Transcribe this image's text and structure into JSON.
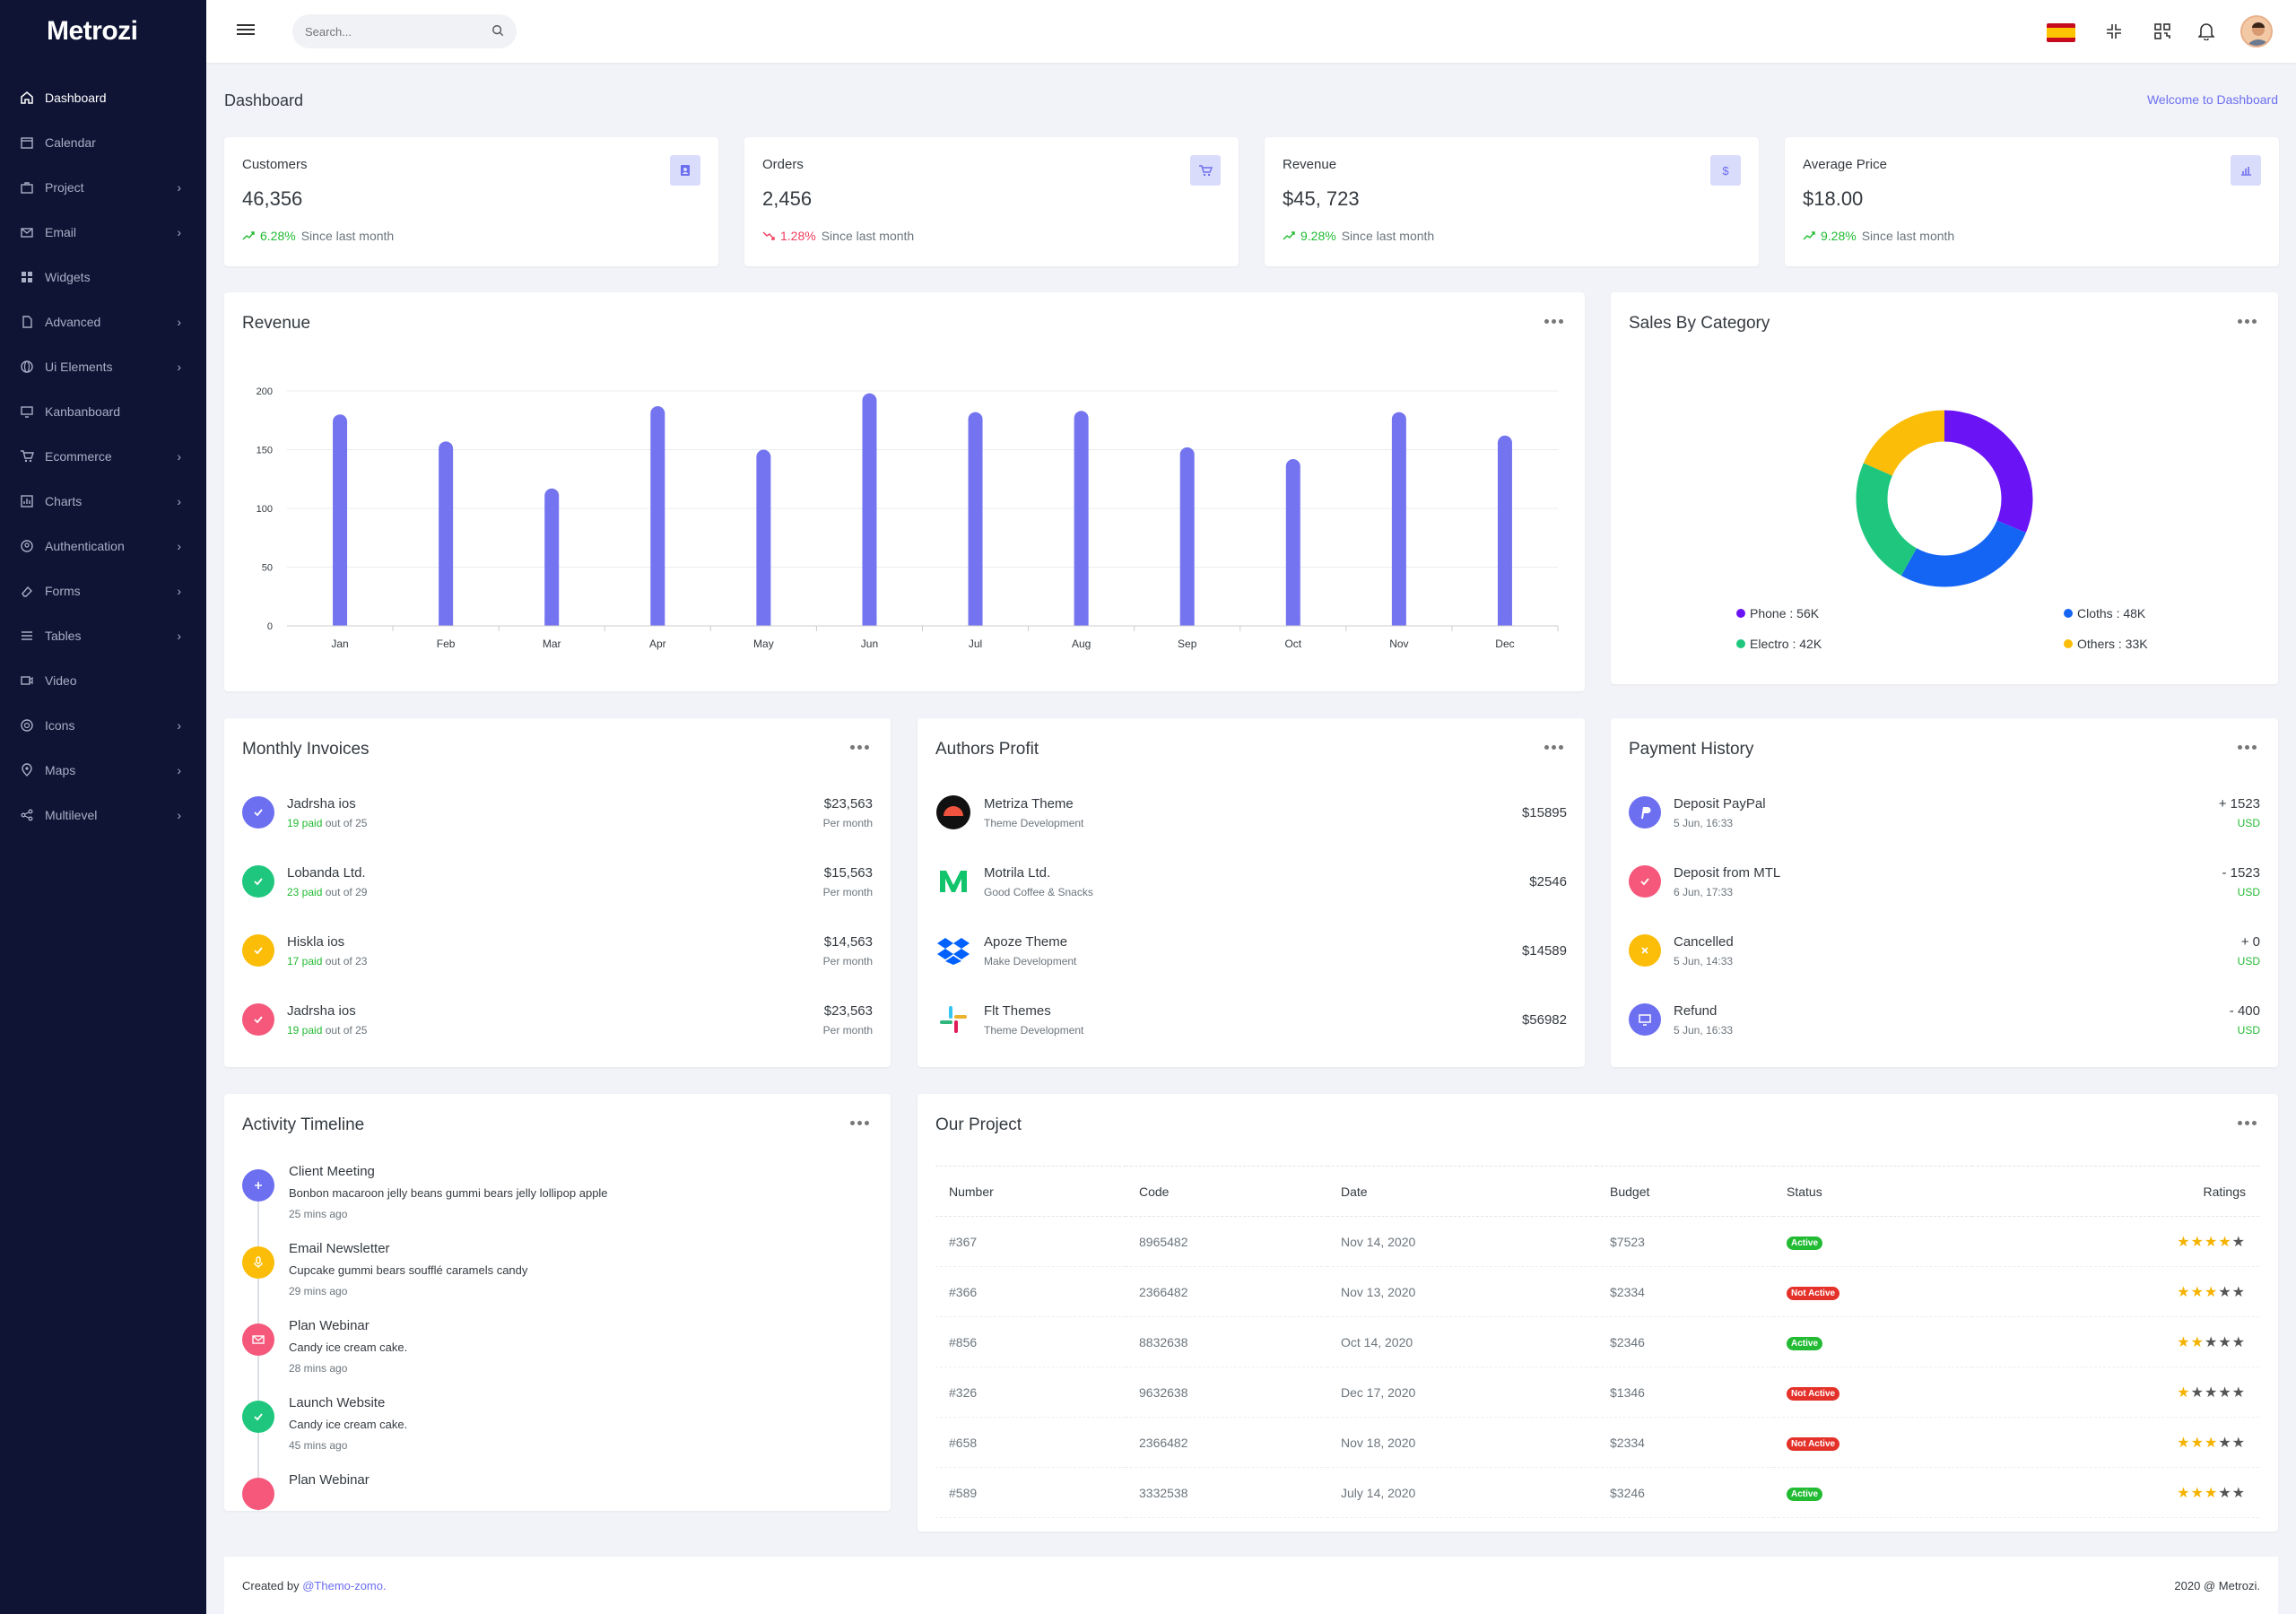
{
  "app": {
    "logo": "Metrozi"
  },
  "sidebar": {
    "items": [
      {
        "label": "Dashboard",
        "icon": "home-icon"
      },
      {
        "label": "Calendar",
        "icon": "calendar-icon"
      },
      {
        "label": "Project",
        "icon": "briefcase-icon"
      },
      {
        "label": "Email",
        "icon": "mail-icon"
      },
      {
        "label": "Widgets",
        "icon": "grid-icon"
      },
      {
        "label": "Advanced",
        "icon": "file-icon"
      },
      {
        "label": "Ui Elements",
        "icon": "globe-icon"
      },
      {
        "label": "Kanbanboard",
        "icon": "monitor-icon"
      },
      {
        "label": "Ecommerce",
        "icon": "cart-icon"
      },
      {
        "label": "Charts",
        "icon": "chart-icon"
      },
      {
        "label": "Authentication",
        "icon": "user-circle-icon"
      },
      {
        "label": "Forms",
        "icon": "eraser-icon"
      },
      {
        "label": "Tables",
        "icon": "list-icon"
      },
      {
        "label": "Video",
        "icon": "video-icon"
      },
      {
        "label": "Icons",
        "icon": "aperture-icon"
      },
      {
        "label": "Maps",
        "icon": "map-pin-icon"
      },
      {
        "label": "Multilevel",
        "icon": "share-icon"
      }
    ]
  },
  "topbar": {
    "search_placeholder": "Search..."
  },
  "page": {
    "title": "Dashboard",
    "welcome": "Welcome to Dashboard"
  },
  "stats": [
    {
      "label": "Customers",
      "value": "46,356",
      "change": "6.28%",
      "trend": "up",
      "since": "Since last month",
      "icon": "user-icon"
    },
    {
      "label": "Orders",
      "value": "2,456",
      "change": "1.28%",
      "trend": "down",
      "since": "Since last month",
      "icon": "cart-icon"
    },
    {
      "label": "Revenue",
      "value": "$45, 723",
      "change": "9.28%",
      "trend": "up",
      "since": "Since last month",
      "icon": "dollar-icon"
    },
    {
      "label": "Average Price",
      "value": "$18.00",
      "change": "9.28%",
      "trend": "up",
      "since": "Since last month",
      "icon": "bar-chart-icon"
    }
  ],
  "revenue": {
    "title": "Revenue"
  },
  "chart_data": [
    {
      "type": "bar",
      "title": "Revenue",
      "categories": [
        "Jan",
        "Feb",
        "Mar",
        "Apr",
        "May",
        "Jun",
        "Jul",
        "Aug",
        "Sep",
        "Oct",
        "Nov",
        "Dec"
      ],
      "values": [
        180,
        157,
        117,
        187,
        150,
        198,
        182,
        183,
        152,
        142,
        182,
        162
      ],
      "ylim": [
        0,
        200
      ],
      "yticks": [
        0,
        50,
        100,
        150,
        200
      ],
      "color": "#7474f0",
      "grid": true
    },
    {
      "type": "pie",
      "title": "Sales By Category",
      "donut": true,
      "series": [
        {
          "name": "Phone",
          "value": 56,
          "label": "Phone : 56K",
          "color": "#6a14f5"
        },
        {
          "name": "Cloths",
          "value": 48,
          "label": "Cloths : 48K",
          "color": "#1565f5"
        },
        {
          "name": "Electro",
          "value": 42,
          "label": "Electro : 42K",
          "color": "#1fc77e"
        },
        {
          "name": "Others",
          "value": 33,
          "label": "Others : 33K",
          "color": "#fbbd08"
        }
      ]
    }
  ],
  "sales": {
    "title": "Sales By Category"
  },
  "invoices": {
    "title": "Monthly Invoices",
    "items": [
      {
        "name": "Jadrsha ios",
        "paid": "19 paid",
        "of": "out of 25",
        "amount": "$23,563",
        "period": "Per month",
        "color": "#6c6ff0"
      },
      {
        "name": "Lobanda Ltd.",
        "paid": "23 paid",
        "of": "out of 29",
        "amount": "$15,563",
        "period": "Per month",
        "color": "#1fc77e"
      },
      {
        "name": "Hiskla ios",
        "paid": "17 paid",
        "of": "out of 23",
        "amount": "$14,563",
        "period": "Per month",
        "color": "#fbbd08"
      },
      {
        "name": "Jadrsha ios",
        "paid": "19 paid",
        "of": "out of 25",
        "amount": "$23,563",
        "period": "Per month",
        "color": "#f5587b"
      }
    ]
  },
  "authors": {
    "title": "Authors Profit",
    "items": [
      {
        "name": "Metriza Theme",
        "sub": "Theme Development",
        "amount": "$15895",
        "icon": "metriza-logo-icon"
      },
      {
        "name": "Motrila Ltd.",
        "sub": "Good Coffee & Snacks",
        "amount": "$2546",
        "icon": "medium-logo-icon"
      },
      {
        "name": "Apoze Theme",
        "sub": "Make Development",
        "amount": "$14589",
        "icon": "dropbox-logo-icon"
      },
      {
        "name": "Flt Themes",
        "sub": "Theme Development",
        "amount": "$56982",
        "icon": "slack-logo-icon"
      }
    ]
  },
  "payments": {
    "title": "Payment History",
    "items": [
      {
        "name": "Deposit PayPal",
        "date": "5 Jun, 16:33",
        "amount": "+ 1523",
        "cur": "USD",
        "color": "#6c6ff0",
        "icon": "paypal-icon"
      },
      {
        "name": "Deposit from MTL",
        "date": "6 Jun, 17:33",
        "amount": "- 1523",
        "cur": "USD",
        "color": "#f5587b",
        "icon": "check-icon"
      },
      {
        "name": "Cancelled",
        "date": "5 Jun, 14:33",
        "amount": "+ 0",
        "cur": "USD",
        "color": "#fbbd08",
        "icon": "close-icon"
      },
      {
        "name": "Refund",
        "date": "5 Jun, 16:33",
        "amount": "- 400",
        "cur": "USD",
        "color": "#6c6ff0",
        "icon": "monitor-icon"
      }
    ]
  },
  "timeline": {
    "title": "Activity Timeline",
    "items": [
      {
        "title": "Client Meeting",
        "text": "Bonbon macaroon jelly beans gummi bears jelly lollipop apple",
        "time": "25 mins ago",
        "color": "#6c6ff0"
      },
      {
        "title": "Email Newsletter",
        "text": "Cupcake gummi bears soufflé caramels candy",
        "time": "29 mins ago",
        "color": "#fbbd08"
      },
      {
        "title": "Plan Webinar",
        "text": "Candy ice cream cake.",
        "time": "28 mins ago",
        "color": "#f5587b"
      },
      {
        "title": "Launch Website",
        "text": "Candy ice cream cake.",
        "time": "45 mins ago",
        "color": "#1fc77e"
      },
      {
        "title": "Plan Webinar",
        "text": "",
        "time": "",
        "color": "#f5587b"
      }
    ]
  },
  "project": {
    "title": "Our Project",
    "headers": [
      "Number",
      "Code",
      "Date",
      "Budget",
      "Status",
      "Ratings"
    ],
    "rows": [
      {
        "number": "#367",
        "code": "8965482",
        "date": "Nov 14, 2020",
        "budget": "$7523",
        "status": "Active",
        "rating": 4
      },
      {
        "number": "#366",
        "code": "2366482",
        "date": "Nov 13, 2020",
        "budget": "$2334",
        "status": "Not Active",
        "rating": 3
      },
      {
        "number": "#856",
        "code": "8832638",
        "date": "Oct 14, 2020",
        "budget": "$2346",
        "status": "Active",
        "rating": 2
      },
      {
        "number": "#326",
        "code": "9632638",
        "date": "Dec 17, 2020",
        "budget": "$1346",
        "status": "Not Active",
        "rating": 1
      },
      {
        "number": "#658",
        "code": "2366482",
        "date": "Nov 18, 2020",
        "budget": "$2334",
        "status": "Not Active",
        "rating": 3
      },
      {
        "number": "#589",
        "code": "3332538",
        "date": "July 14, 2020",
        "budget": "$3246",
        "status": "Active",
        "rating": 3
      }
    ]
  },
  "footer": {
    "created": "Created by",
    "author": "@Themo-zomo.",
    "copyright": "2020 @ Metrozi."
  }
}
